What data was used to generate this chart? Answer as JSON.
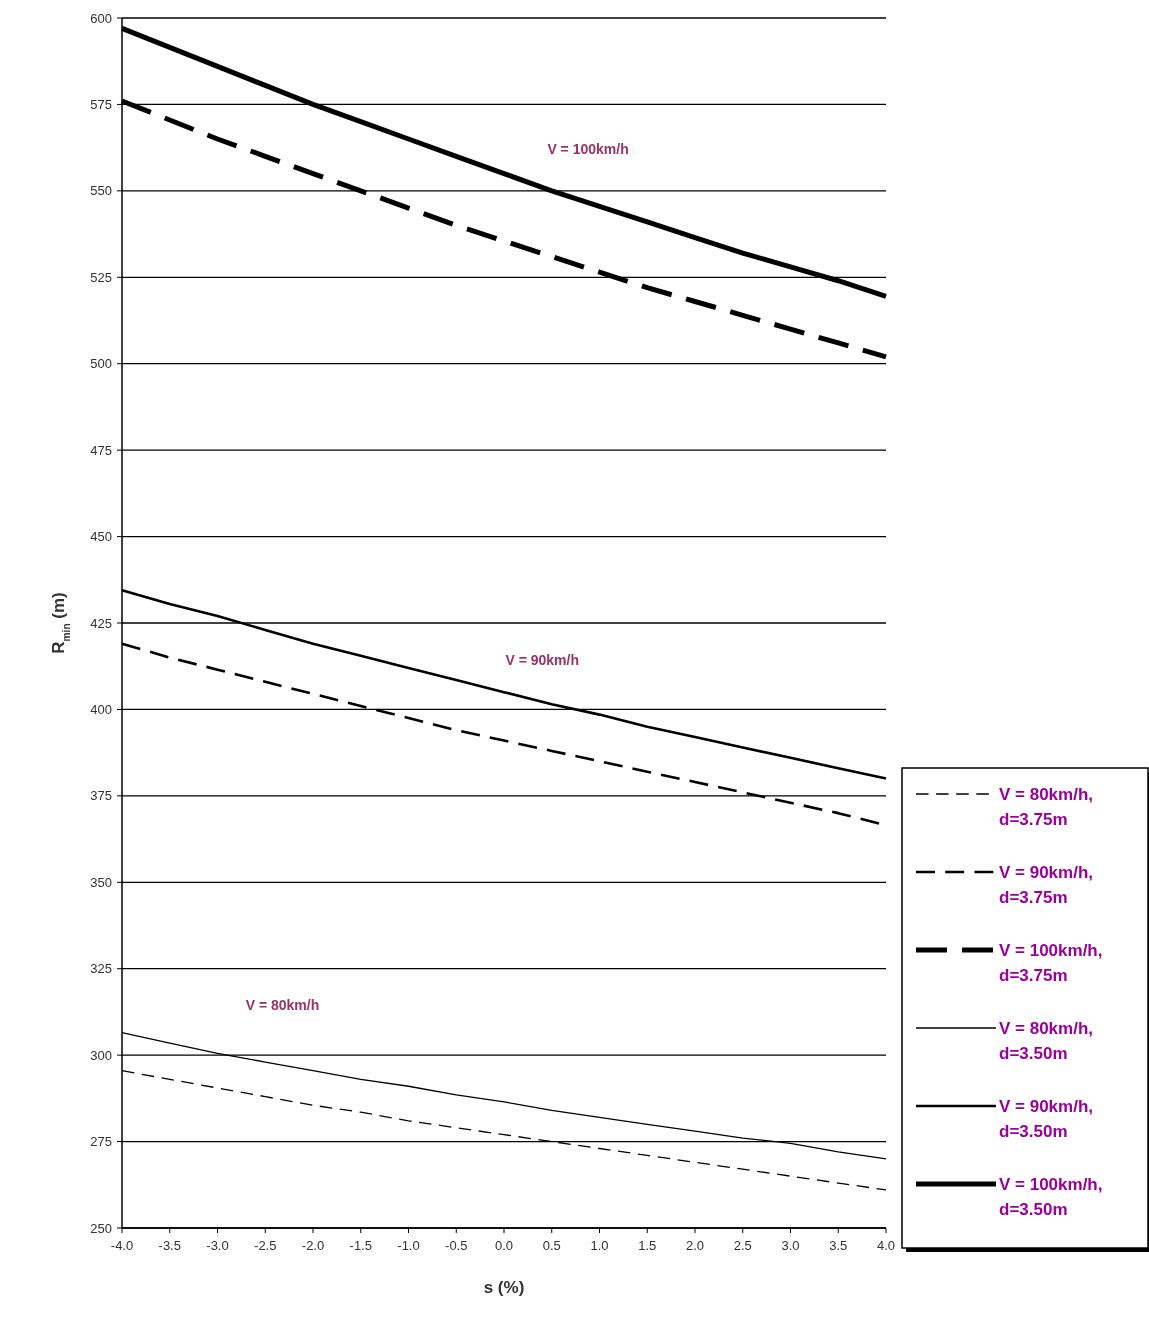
{
  "chart_data": {
    "type": "line",
    "xlabel": "s (%)",
    "ylabel": "R$_{min}$ (m)",
    "x": [
      -4,
      -3.5,
      -3,
      -2.5,
      -2,
      -1.5,
      -1,
      -0.5,
      0,
      0.5,
      1,
      1.5,
      2,
      2.5,
      3,
      3.5,
      4
    ],
    "xlim": [
      -4,
      4
    ],
    "xticks": [
      {
        "value": -4,
        "label": "-4.0"
      },
      {
        "value": -3.5,
        "label": "-3.5"
      },
      {
        "value": -3,
        "label": "-3.0"
      },
      {
        "value": -2.5,
        "label": "-2.5"
      },
      {
        "value": -2,
        "label": "-2.0"
      },
      {
        "value": -1.5,
        "label": "-1.5"
      },
      {
        "value": -1,
        "label": "-1.0"
      },
      {
        "value": -0.5,
        "label": "-0.5"
      },
      {
        "value": 0,
        "label": "0.0"
      },
      {
        "value": 0.5,
        "label": "0.5"
      },
      {
        "value": 1,
        "label": "1.0"
      },
      {
        "value": 1.5,
        "label": "1.5"
      },
      {
        "value": 2,
        "label": "2.0"
      },
      {
        "value": 2.5,
        "label": "2.5"
      },
      {
        "value": 3,
        "label": "3.0"
      },
      {
        "value": 3.5,
        "label": "3.5"
      },
      {
        "value": 4,
        "label": "4.0"
      }
    ],
    "ylim": [
      250,
      600
    ],
    "yticks": [
      250,
      275,
      300,
      325,
      350,
      375,
      400,
      425,
      450,
      475,
      500,
      525,
      550,
      575,
      600
    ],
    "grid": "y",
    "legend": "bottom right",
    "marker": "none",
    "series": [
      {
        "name": "V = 80km/h, d=3.75m",
        "color": "#000000",
        "line_style": "dashed",
        "values": [
          295.5,
          293,
          290.5,
          288,
          285.5,
          283.5,
          281,
          279,
          277,
          275,
          273,
          271,
          269,
          267,
          265,
          263,
          261
        ]
      },
      {
        "name": "V = 90km/h, d=3.75m",
        "color": "#000000",
        "line_style": "dashed",
        "values": [
          419,
          415,
          411.5,
          408,
          404.5,
          401,
          397.5,
          394,
          391,
          388,
          385,
          382,
          379,
          376,
          373,
          370,
          366.5
        ]
      },
      {
        "name": "V = 100km/h, d=3.75m",
        "color": "#000000",
        "line_style": "dashed",
        "values": [
          576,
          570.5,
          565,
          560,
          555,
          550,
          545,
          540,
          535.5,
          531,
          526.5,
          522,
          518,
          514,
          510,
          506,
          502
        ]
      },
      {
        "name": "V = 80km/h, d=3.50m",
        "color": "#000000",
        "line_style": "solid",
        "values": [
          306.5,
          303.5,
          300.5,
          298,
          295.5,
          293,
          291,
          288.5,
          286.5,
          284,
          282,
          280,
          278,
          276,
          274.5,
          272,
          270
        ]
      },
      {
        "name": "V = 90km/h, d=3.50m",
        "color": "#000000",
        "line_style": "solid",
        "values": [
          434.5,
          430.5,
          427,
          423,
          419,
          415.5,
          412,
          408.5,
          405,
          401.5,
          398.5,
          395,
          392,
          389,
          386,
          383,
          380
        ]
      },
      {
        "name": "V = 100km/h, d=3.50m",
        "color": "#000000",
        "line_style": "solid",
        "values": [
          597,
          591.5,
          586,
          580.5,
          575,
          570,
          565,
          560,
          555,
          550,
          545.5,
          541,
          536.5,
          532,
          528,
          524,
          519.5
        ]
      }
    ],
    "annotations": [
      "V = 100km/h",
      "V = 90km/h",
      "V = 80km/h"
    ]
  }
}
